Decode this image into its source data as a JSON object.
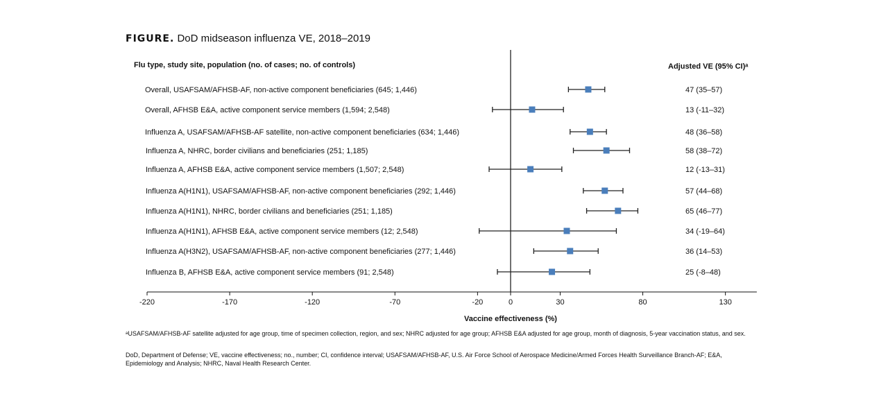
{
  "figure": {
    "label": "FIGURE.",
    "title": "DoD midseason influenza VE, 2018–2019"
  },
  "chart_data": {
    "type": "forest",
    "row_header": "Flu type, study site, population (no. of cases; no. of controls)",
    "value_header": "Adjusted VE (95% CI)ᵃ",
    "xlabel": "Vaccine effectiveness (%)",
    "xlim": [
      -220,
      149
    ],
    "xticks": [
      -220,
      -170,
      -120,
      -70,
      -20,
      0,
      30,
      80,
      130
    ],
    "reference_line": 0,
    "marker_color": "#4a7ebb",
    "rows": [
      {
        "label": "Overall, USAFSAM/AFHSB-AF, non-active component beneficiaries (645; 1,446)",
        "ve": 47,
        "lo": 35,
        "hi": 57,
        "text": "47 (35–57)"
      },
      {
        "label": "Overall, AFHSB E&A, active component service members (1,594; 2,548)",
        "ve": 13,
        "lo": -11,
        "hi": 32,
        "text": "13 (-11–32)"
      },
      {
        "label": "Influenza A, USAFSAM/AFHSB-AF satellite, non-active component beneficiaries (634; 1,446)",
        "ve": 48,
        "lo": 36,
        "hi": 58,
        "text": "48 (36–58)"
      },
      {
        "label": "Influenza A, NHRC, border civilians and beneficiaries (251; 1,185)",
        "ve": 58,
        "lo": 38,
        "hi": 72,
        "text": "58 (38–72)"
      },
      {
        "label": "Influenza A, AFHSB E&A, active component service members (1,507; 2,548)",
        "ve": 12,
        "lo": -13,
        "hi": 31,
        "text": "12 (-13–31)"
      },
      {
        "label": "Influenza A(H1N1), USAFSAM/AFHSB-AF, non-active component beneficiaries (292; 1,446)",
        "ve": 57,
        "lo": 44,
        "hi": 68,
        "text": "57 (44–68)"
      },
      {
        "label": "Influenza A(H1N1), NHRC, border civilians and beneficiaries (251; 1,185)",
        "ve": 65,
        "lo": 46,
        "hi": 77,
        "text": "65 (46–77)"
      },
      {
        "label": "Influenza A(H1N1), AFHSB E&A, active component service members (12; 2,548)",
        "ve": 34,
        "lo": -19,
        "hi": 64,
        "text": "34 (-19–64)"
      },
      {
        "label": "Influenza A(H3N2), USAFSAM/AFHSB-AF, non-active component beneficiaries (277; 1,446)",
        "ve": 36,
        "lo": 14,
        "hi": 53,
        "text": "36 (14–53)"
      },
      {
        "label": "Influenza B, AFHSB E&A, active component service members (91; 2,548)",
        "ve": 25,
        "lo": -8,
        "hi": 48,
        "text": "25 (-8–48)"
      }
    ]
  },
  "footnotes": {
    "a": "ᵃUSAFSAM/AFHSB-AF satellite adjusted for age group, time of specimen collection, region, and sex; NHRC adjusted for age group; AFHSB E&A adjusted for age group, month of diagnosis, 5-year vaccination status, and sex.",
    "abbrev": "DoD, Department of Defense; VE, vaccine effectiveness; no., number; CI, confidence interval; USAFSAM/AFHSB-AF, U.S. Air Force School of Aerospace Medicine/Armed Forces Health Surveillance Branch-AF; E&A, Epidemiology and Analysis; NHRC, Naval Health Research Center."
  }
}
